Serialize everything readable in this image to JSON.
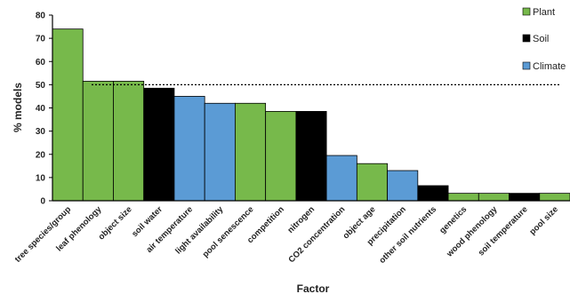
{
  "chart_data": {
    "type": "bar",
    "xlabel": "Factor",
    "ylabel": "% models",
    "ylim": [
      0,
      80
    ],
    "yticks": [
      0,
      10,
      20,
      30,
      40,
      50,
      60,
      70,
      80
    ],
    "reference_line": 50,
    "categories": [
      "tree species/group",
      "leaf phenology",
      "object size",
      "soil water",
      "air temperature",
      "light availability",
      "pool senescence",
      "competition",
      "nitrogen",
      "CO2 concentration",
      "object age",
      "precipitation",
      "other soil nutrients",
      "genetics",
      "wood phenology",
      "soil temperature",
      "pool size"
    ],
    "values": [
      74,
      51.5,
      51.5,
      48.5,
      45,
      42,
      42,
      38.5,
      38.5,
      19.5,
      16,
      13,
      6.5,
      3.2,
      3.2,
      3.2,
      3.2
    ],
    "groups": [
      "Plant",
      "Plant",
      "Plant",
      "Soil",
      "Climate",
      "Climate",
      "Plant",
      "Plant",
      "Soil",
      "Climate",
      "Plant",
      "Climate",
      "Soil",
      "Plant",
      "Plant",
      "Soil",
      "Plant"
    ],
    "legend": [
      {
        "name": "Plant",
        "color": "#77b94b"
      },
      {
        "name": "Soil",
        "color": "#000000"
      },
      {
        "name": "Climate",
        "color": "#5b9bd5"
      }
    ],
    "legend_position": "right",
    "grid": false
  }
}
